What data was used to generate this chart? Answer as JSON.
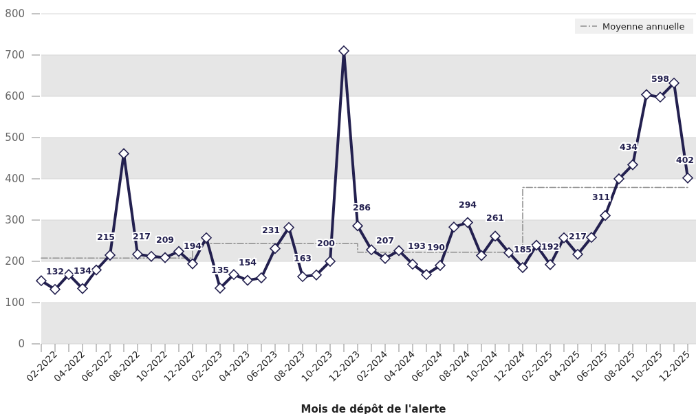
{
  "chart_data": {
    "type": "line",
    "xlabel": "Mois de dépôt de l'alerte",
    "categories": [
      null,
      "02-2022",
      null,
      "04-2022",
      null,
      "06-2022",
      null,
      "08-2022",
      null,
      "10-2022",
      null,
      "12-2022",
      null,
      "02-2023",
      null,
      "04-2023",
      null,
      "06-2023",
      null,
      "08-2023",
      null,
      "10-2023",
      null,
      "12-2023",
      null,
      "02-2024",
      null,
      "04-2024",
      null,
      "06-2024",
      null,
      "08-2024",
      null,
      "10-2024",
      null,
      "12-2024",
      null,
      "02-2025",
      null,
      "04-2025",
      null,
      "06-2025",
      null,
      "08-2025",
      null,
      "10-2025",
      null,
      "12-2025"
    ],
    "series": [
      {
        "color": "#23204f",
        "marker": "diamond",
        "line_style": "solid",
        "values": [
          153,
          132,
          168,
          134,
          179,
          215,
          461,
          217,
          212,
          209,
          224,
          194,
          257,
          135,
          168,
          154,
          160,
          231,
          282,
          163,
          167,
          200,
          710,
          286,
          228,
          207,
          226,
          193,
          168,
          190,
          283,
          294,
          214,
          261,
          221,
          185,
          239,
          192,
          257,
          217,
          258,
          311,
          400,
          434,
          604,
          598,
          632,
          402
        ],
        "value_labels": [
          null,
          "132",
          null,
          "134",
          null,
          "215",
          null,
          "217",
          null,
          "209",
          null,
          "194",
          null,
          "135",
          null,
          "154",
          null,
          "231",
          null,
          "163",
          null,
          "200",
          null,
          "286",
          null,
          "207",
          null,
          "193",
          null,
          "190",
          null,
          "294",
          null,
          "261",
          null,
          "185",
          null,
          "192",
          null,
          "217",
          null,
          "311",
          null,
          "434",
          null,
          "598",
          null,
          "402"
        ]
      },
      {
        "type": "step",
        "name": "Moyenne annuelle",
        "color": "#8c8c8c",
        "marker": "none",
        "line_style": "dashed",
        "values": [
          208,
          208,
          208,
          208,
          208,
          208,
          208,
          208,
          208,
          208,
          208,
          208,
          243,
          243,
          243,
          243,
          243,
          243,
          243,
          243,
          243,
          243,
          243,
          243,
          222,
          222,
          222,
          222,
          222,
          222,
          222,
          222,
          222,
          222,
          222,
          222,
          379,
          379,
          379,
          379,
          379,
          379,
          379,
          379,
          379,
          379,
          379,
          379
        ]
      }
    ],
    "ylim": [
      0,
      800
    ],
    "yticks": [
      0,
      100,
      200,
      300,
      400,
      500,
      600,
      700,
      800
    ],
    "grid": "y",
    "legend": "top right"
  }
}
